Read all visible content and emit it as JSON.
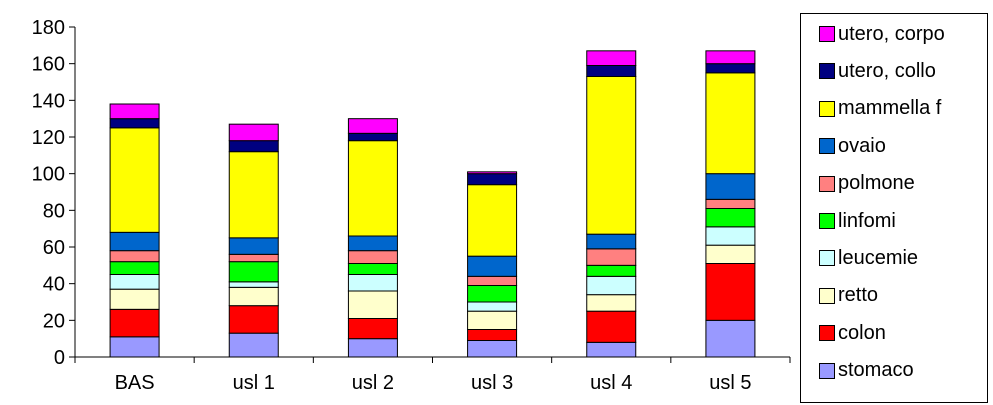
{
  "chart_data": {
    "type": "bar",
    "stacked": true,
    "title": "",
    "xlabel": "",
    "ylabel": "",
    "ylim": [
      0,
      180
    ],
    "yticks": [
      "0",
      "20",
      "40",
      "60",
      "80",
      "100",
      "120",
      "140",
      "160",
      "180"
    ],
    "grid": false,
    "legend_position": "right",
    "categories": [
      "BAS",
      "usl 1",
      "usl 2",
      "usl 3",
      "usl 4",
      "usl 5"
    ],
    "series": [
      {
        "name": "stomaco",
        "color": "#9999ff",
        "values": [
          11,
          13,
          10,
          9,
          8,
          20
        ]
      },
      {
        "name": "colon",
        "color": "#ff0000",
        "values": [
          15,
          15,
          11,
          6,
          17,
          31
        ]
      },
      {
        "name": "retto",
        "color": "#ffffcc",
        "values": [
          11,
          10,
          15,
          10,
          9,
          10
        ]
      },
      {
        "name": "leucemie",
        "color": "#ccffff",
        "values": [
          8,
          3,
          9,
          5,
          10,
          10
        ]
      },
      {
        "name": "linfomi",
        "color": "#00ff00",
        "values": [
          7,
          11,
          6,
          9,
          6,
          10
        ]
      },
      {
        "name": "polmone",
        "color": "#ff8080",
        "values": [
          6,
          4,
          7,
          5,
          9,
          5
        ]
      },
      {
        "name": "ovaio",
        "color": "#0066cc",
        "values": [
          10,
          9,
          8,
          11,
          8,
          14
        ]
      },
      {
        "name": "mammella f",
        "color": "#ffff00",
        "values": [
          57,
          47,
          52,
          39,
          86,
          55
        ]
      },
      {
        "name": "utero, collo",
        "color": "#000080",
        "values": [
          5,
          6,
          4,
          6,
          6,
          5
        ]
      },
      {
        "name": "utero, corpo",
        "color": "#ff00ff",
        "values": [
          8,
          9,
          8,
          1,
          8,
          7
        ]
      }
    ]
  }
}
